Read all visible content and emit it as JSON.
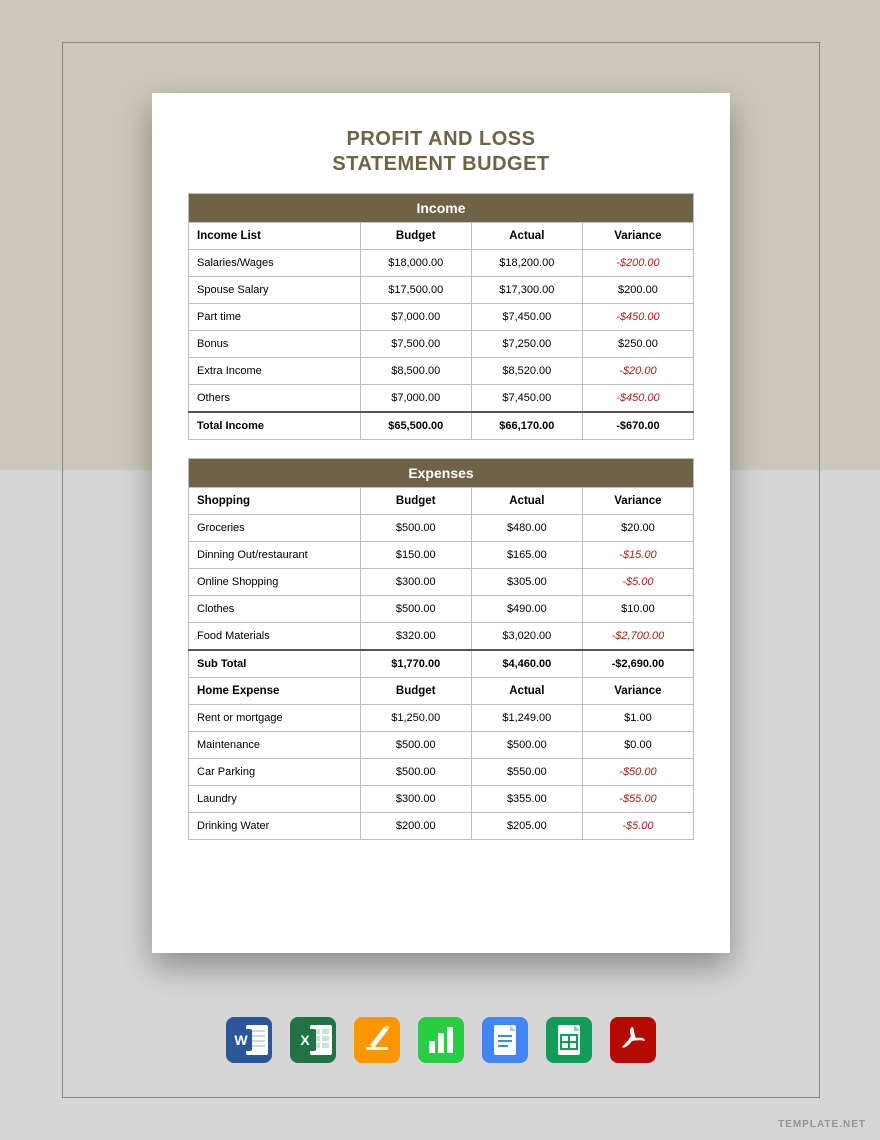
{
  "colors": {
    "bg_top": "#cbc7ba",
    "bg_bottom": "#d6d6d6",
    "frame_border": "#8a8577",
    "doc_bg": "#ffffff",
    "title_color": "#6e6345",
    "section_bg": "#6e6347",
    "section_text": "#ffffff",
    "border": "#bfbfbf",
    "negative": "#b01c1c"
  },
  "title_line1": "PROFIT AND LOSS",
  "title_line2": "STATEMENT BUDGET",
  "income": {
    "section": "Income",
    "header": {
      "c0": "Income List",
      "c1": "Budget",
      "c2": "Actual",
      "c3": "Variance"
    },
    "rows": [
      {
        "label": "Salaries/Wages",
        "budget": "$18,000.00",
        "actual": "$18,200.00",
        "variance": "-$200.00",
        "neg": true
      },
      {
        "label": "Spouse Salary",
        "budget": "$17,500.00",
        "actual": "$17,300.00",
        "variance": "$200.00",
        "neg": false
      },
      {
        "label": "Part time",
        "budget": "$7,000.00",
        "actual": "$7,450.00",
        "variance": "-$450.00",
        "neg": true
      },
      {
        "label": "Bonus",
        "budget": "$7,500.00",
        "actual": "$7,250.00",
        "variance": "$250.00",
        "neg": false
      },
      {
        "label": "Extra Income",
        "budget": "$8,500.00",
        "actual": "$8,520.00",
        "variance": "-$20.00",
        "neg": true
      },
      {
        "label": "Others",
        "budget": "$7,000.00",
        "actual": "$7,450.00",
        "variance": "-$450.00",
        "neg": true
      }
    ],
    "total": {
      "label": "Total Income",
      "budget": "$65,500.00",
      "actual": "$66,170.00",
      "variance": "-$670.00"
    }
  },
  "expenses": {
    "section": "Expenses",
    "shopping": {
      "header": {
        "c0": "Shopping",
        "c1": "Budget",
        "c2": "Actual",
        "c3": "Variance"
      },
      "rows": [
        {
          "label": "Groceries",
          "budget": "$500.00",
          "actual": "$480.00",
          "variance": "$20.00",
          "neg": false
        },
        {
          "label": "Dinning Out/restaurant",
          "budget": "$150.00",
          "actual": "$165.00",
          "variance": "-$15.00",
          "neg": true
        },
        {
          "label": "Online Shopping",
          "budget": "$300.00",
          "actual": "$305.00",
          "variance": "-$5.00",
          "neg": true
        },
        {
          "label": "Clothes",
          "budget": "$500.00",
          "actual": "$490.00",
          "variance": "$10.00",
          "neg": false
        },
        {
          "label": "Food Materials",
          "budget": "$320.00",
          "actual": "$3,020.00",
          "variance": "-$2,700.00",
          "neg": true
        }
      ],
      "subtotal": {
        "label": "Sub Total",
        "budget": "$1,770.00",
        "actual": "$4,460.00",
        "variance": "-$2,690.00"
      }
    },
    "home": {
      "header": {
        "c0": "Home Expense",
        "c1": "Budget",
        "c2": "Actual",
        "c3": "Variance"
      },
      "rows": [
        {
          "label": "Rent or mortgage",
          "budget": "$1,250.00",
          "actual": "$1,249.00",
          "variance": "$1.00",
          "neg": false
        },
        {
          "label": "Maintenance",
          "budget": "$500.00",
          "actual": "$500.00",
          "variance": "$0.00",
          "neg": false
        },
        {
          "label": "Car Parking",
          "budget": "$500.00",
          "actual": "$550.00",
          "variance": "-$50.00",
          "neg": true
        },
        {
          "label": "Laundry",
          "budget": "$300.00",
          "actual": "$355.00",
          "variance": "-$55.00",
          "neg": true
        },
        {
          "label": "Drinking Water",
          "budget": "$200.00",
          "actual": "$205.00",
          "variance": "-$5.00",
          "neg": true
        }
      ]
    }
  },
  "apps": [
    {
      "name": "word-icon",
      "bg": "#2b579a",
      "shape": "W"
    },
    {
      "name": "excel-icon",
      "bg": "#217346",
      "shape": "X"
    },
    {
      "name": "pages-icon",
      "bg": "#ff9500",
      "shape": "pen"
    },
    {
      "name": "numbers-icon",
      "bg": "#28cd41",
      "shape": "bars"
    },
    {
      "name": "docs-icon",
      "bg": "#4285f4",
      "shape": "doc"
    },
    {
      "name": "sheets-icon",
      "bg": "#0f9d58",
      "shape": "grid"
    },
    {
      "name": "pdf-icon",
      "bg": "#b30b00",
      "shape": "pdf"
    }
  ],
  "watermark": "TEMPLATE.NET"
}
